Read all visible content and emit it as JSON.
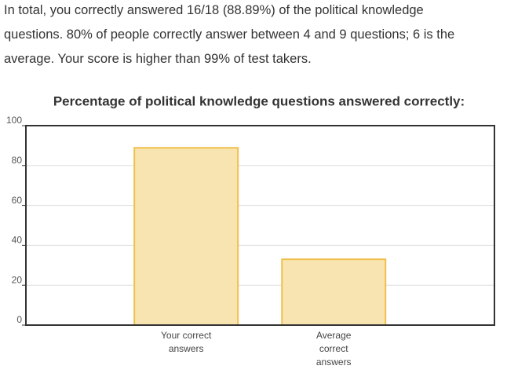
{
  "intro": [
    "In total, you correctly answered 16/18 (88.89%) of the political knowledge",
    "questions. 80% of people correctly answer between 4 and 9 questions; 6 is the",
    "average. Your score is higher than 99% of test takers."
  ],
  "chart_data": {
    "type": "bar",
    "title": "Percentage of political knowledge questions answered correctly:",
    "categories": [
      "Your correct answers",
      "Average correct answers"
    ],
    "values": [
      88.89,
      33
    ],
    "color": "#f8e4b0",
    "edge_color": "#f0c04c",
    "ylim": [
      0,
      100
    ],
    "yticks": [
      0,
      20,
      40,
      60,
      80,
      100
    ],
    "grid": true
  }
}
